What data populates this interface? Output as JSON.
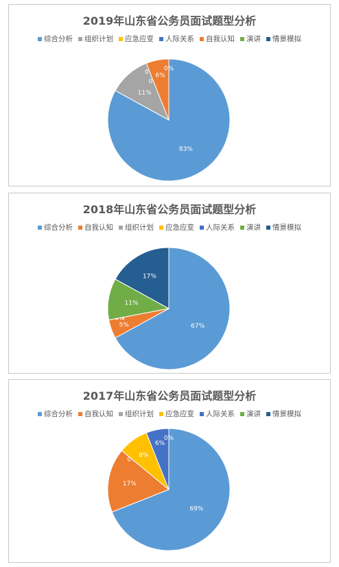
{
  "colors": {
    "综合分析": "#5b9bd5",
    "组织计划": "#a5a5a5",
    "应急应变": "#ffc000",
    "人际关系": "#4472c4",
    "自我认知": "#ed7d31",
    "演讲": "#70ad47",
    "情景模拟": "#255e91"
  },
  "chart_data": [
    {
      "type": "pie",
      "title": "2019年山东省公务员面试题型分析",
      "legend": [
        "综合分析",
        "组织计划",
        "应急应变",
        "人际关系",
        "自我认知",
        "演讲",
        "情景模拟"
      ],
      "slices": [
        {
          "name": "综合分析",
          "value": 83,
          "label": "83%"
        },
        {
          "name": "组织计划",
          "value": 11,
          "label": "11%"
        },
        {
          "name": "应急应变",
          "value": 0,
          "label": "0%"
        },
        {
          "name": "人际关系",
          "value": 0,
          "label": "0%"
        },
        {
          "name": "自我认知",
          "value": 6,
          "label": "6%"
        },
        {
          "name": "演讲",
          "value": 0,
          "label": "0%"
        },
        {
          "name": "情景模拟",
          "value": 0,
          "label": ""
        }
      ]
    },
    {
      "type": "pie",
      "title": "2018年山东省公务员面试题型分析",
      "legend": [
        "综合分析",
        "自我认知",
        "组织计划",
        "应急应变",
        "人际关系",
        "演讲",
        "情景模拟"
      ],
      "slices": [
        {
          "name": "综合分析",
          "value": 67,
          "label": "67%"
        },
        {
          "name": "自我认知",
          "value": 5,
          "label": "5%"
        },
        {
          "name": "组织计划",
          "value": 0,
          "label": "0%"
        },
        {
          "name": "应急应变",
          "value": 0,
          "label": "0%"
        },
        {
          "name": "人际关系",
          "value": 0,
          "label": "0%"
        },
        {
          "name": "演讲",
          "value": 11,
          "label": "11%"
        },
        {
          "name": "情景模拟",
          "value": 17,
          "label": "17%"
        }
      ]
    },
    {
      "type": "pie",
      "title": "2017年山东省公务员面试题型分析",
      "legend": [
        "综合分析",
        "自我认知",
        "组织计划",
        "应急应变",
        "人际关系",
        "演讲",
        "情景模拟"
      ],
      "slices": [
        {
          "name": "综合分析",
          "value": 69,
          "label": "69%"
        },
        {
          "name": "自我认知",
          "value": 17,
          "label": "17%"
        },
        {
          "name": "组织计划",
          "value": 0,
          "label": "0%"
        },
        {
          "name": "应急应变",
          "value": 8,
          "label": "8%"
        },
        {
          "name": "人际关系",
          "value": 6,
          "label": "6%"
        },
        {
          "name": "演讲",
          "value": 0,
          "label": "0%"
        },
        {
          "name": "情景模拟",
          "value": 0,
          "label": ""
        }
      ]
    }
  ]
}
